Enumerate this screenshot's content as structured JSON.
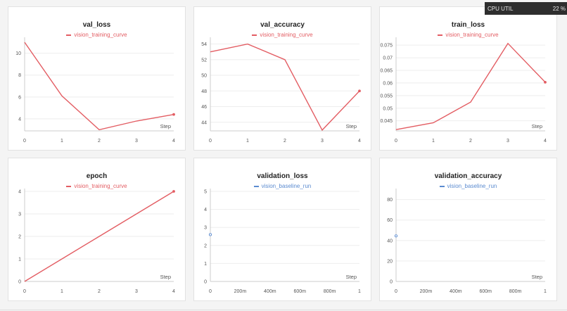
{
  "cpu_util": {
    "label": "CPU UTIL",
    "value": "22 %"
  },
  "colors": {
    "training": "#e35d63",
    "baseline": "#5b8bd0"
  },
  "chart_data": [
    {
      "type": "line",
      "title": "val_loss",
      "legend": "vision_training_curve",
      "color": "#e35d63",
      "xlabel": "Step",
      "xlim": [
        0,
        4
      ],
      "ylim": [
        2.9,
        11.2
      ],
      "xticks": [
        0,
        1,
        2,
        3,
        4
      ],
      "xtick_labels": [
        "0",
        "1",
        "2",
        "3",
        "4"
      ],
      "yticks": [
        4,
        6,
        8,
        10
      ],
      "ytick_labels": [
        "4",
        "6",
        "8",
        "10"
      ],
      "grid": true,
      "series": [
        {
          "name": "vision_training_curve",
          "x": [
            0,
            1,
            2,
            3,
            4
          ],
          "y": [
            11.0,
            6.1,
            3.0,
            3.8,
            4.4
          ]
        }
      ]
    },
    {
      "type": "line",
      "title": "val_accuracy",
      "legend": "vision_training_curve",
      "color": "#e35d63",
      "xlabel": "Step",
      "xlim": [
        0,
        4
      ],
      "ylim": [
        42.9,
        54.5
      ],
      "xticks": [
        0,
        1,
        2,
        3,
        4
      ],
      "xtick_labels": [
        "0",
        "1",
        "2",
        "3",
        "4"
      ],
      "yticks": [
        44,
        46,
        48,
        50,
        52,
        54
      ],
      "ytick_labels": [
        "44",
        "46",
        "48",
        "50",
        "52",
        "54"
      ],
      "grid": true,
      "series": [
        {
          "name": "vision_training_curve",
          "x": [
            0,
            1,
            2,
            3,
            4
          ],
          "y": [
            53,
            54,
            52,
            43,
            48
          ]
        }
      ]
    },
    {
      "type": "line",
      "title": "train_loss",
      "legend": "vision_training_curve",
      "color": "#e35d63",
      "xlabel": "Step",
      "xlim": [
        0,
        4
      ],
      "ylim": [
        0.041,
        0.077
      ],
      "xticks": [
        0,
        1,
        2,
        3,
        4
      ],
      "xtick_labels": [
        "0",
        "1",
        "2",
        "3",
        "4"
      ],
      "yticks": [
        0.045,
        0.05,
        0.055,
        0.06,
        0.065,
        0.07,
        0.075
      ],
      "ytick_labels": [
        "0.045",
        "0.05",
        "0.055",
        "0.06",
        "0.065",
        "0.07",
        "0.075"
      ],
      "grid": true,
      "series": [
        {
          "name": "vision_training_curve",
          "x": [
            0,
            1,
            2,
            3,
            4
          ],
          "y": [
            0.0415,
            0.0442,
            0.0524,
            0.0757,
            0.0603
          ]
        }
      ]
    },
    {
      "type": "line",
      "title": "epoch",
      "legend": "vision_training_curve",
      "color": "#e35d63",
      "xlabel": "Step",
      "xlim": [
        0,
        4
      ],
      "ylim": [
        0,
        4
      ],
      "xticks": [
        0,
        1,
        2,
        3,
        4
      ],
      "xtick_labels": [
        "0",
        "1",
        "2",
        "3",
        "4"
      ],
      "yticks": [
        0,
        1,
        2,
        3,
        4
      ],
      "ytick_labels": [
        "0",
        "1",
        "2",
        "3",
        "4"
      ],
      "grid": true,
      "series": [
        {
          "name": "vision_training_curve",
          "x": [
            0,
            1,
            2,
            3,
            4
          ],
          "y": [
            0,
            1,
            2,
            3,
            4
          ]
        }
      ]
    },
    {
      "type": "scatter",
      "title": "validation_loss",
      "legend": "vision_baseline_run",
      "color": "#5b8bd0",
      "xlabel": "Step",
      "xlim": [
        0,
        1
      ],
      "ylim": [
        0,
        5
      ],
      "xticks": [
        0,
        0.2,
        0.4,
        0.6,
        0.8,
        1
      ],
      "xtick_labels": [
        "0",
        "200m",
        "400m",
        "600m",
        "800m",
        "1"
      ],
      "yticks": [
        0,
        1,
        2,
        3,
        4,
        5
      ],
      "ytick_labels": [
        "0",
        "1",
        "2",
        "3",
        "4",
        "5"
      ],
      "grid": true,
      "series": [
        {
          "name": "vision_baseline_run",
          "x": [
            0
          ],
          "y": [
            2.6
          ]
        }
      ]
    },
    {
      "type": "scatter",
      "title": "validation_accuracy",
      "legend": "vision_baseline_run",
      "color": "#5b8bd0",
      "xlabel": "Step",
      "xlim": [
        0,
        1
      ],
      "ylim": [
        0,
        88
      ],
      "xticks": [
        0,
        0.2,
        0.4,
        0.6,
        0.8,
        1
      ],
      "xtick_labels": [
        "0",
        "200m",
        "400m",
        "600m",
        "800m",
        "1"
      ],
      "yticks": [
        0,
        20,
        40,
        60,
        80
      ],
      "ytick_labels": [
        "0",
        "20",
        "40",
        "60",
        "80"
      ],
      "grid": true,
      "series": [
        {
          "name": "vision_baseline_run",
          "x": [
            0
          ],
          "y": [
            44.5
          ]
        }
      ]
    }
  ]
}
